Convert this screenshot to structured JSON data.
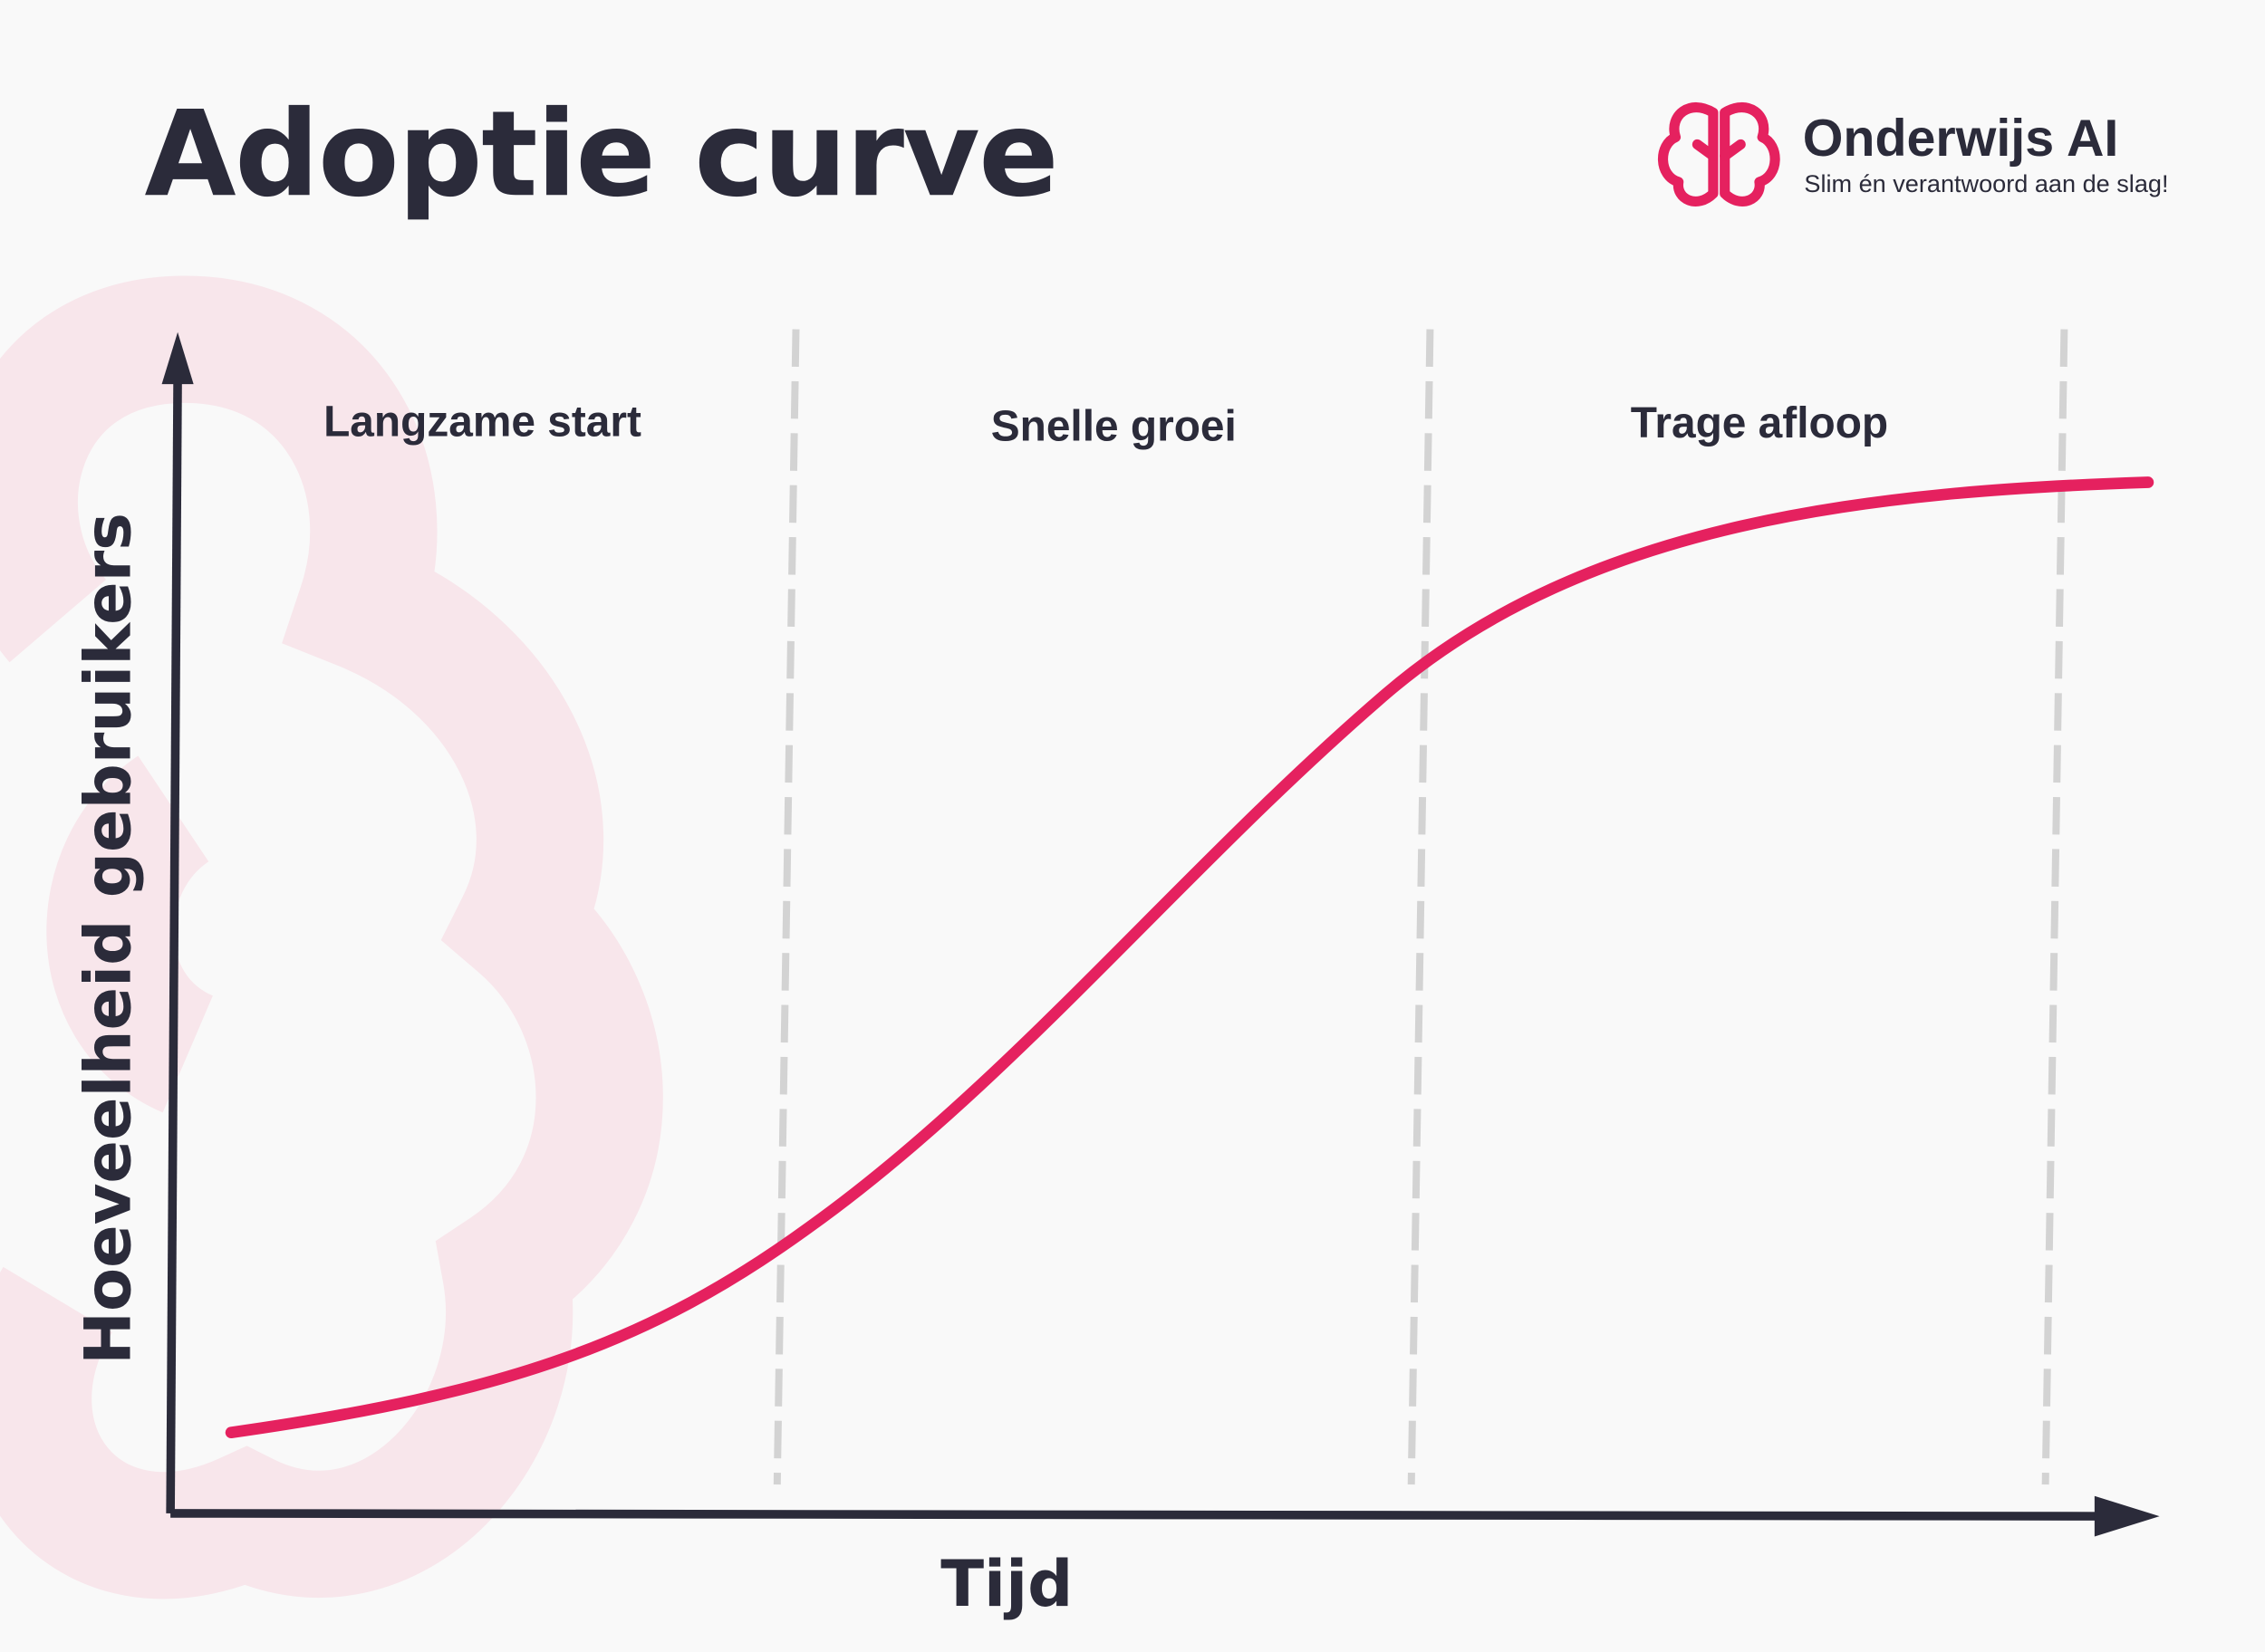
{
  "header": {
    "title": "Adoptie curve"
  },
  "logo": {
    "name": "Onderwijs AI",
    "tagline": "Slim én verantwoord aan de slag!"
  },
  "diagram": {
    "phases": [
      "Langzame start",
      "Snelle groei",
      "Trage afloop"
    ],
    "y_axis_label": "Hoeveelheid gebruikers",
    "x_axis_label": "Tijd"
  }
}
